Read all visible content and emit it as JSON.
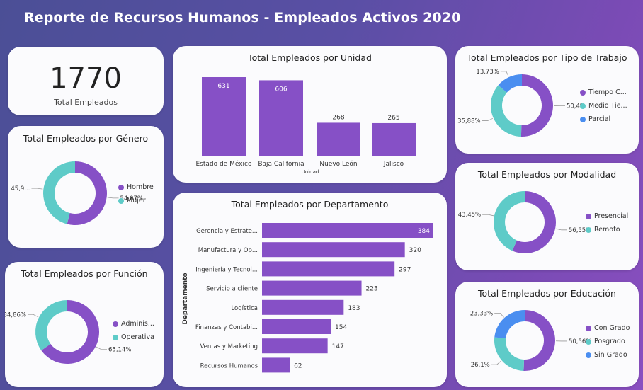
{
  "header": {
    "title": "Reporte de Recursos Humanos - Empleados Activos 2020"
  },
  "kpi": {
    "value": "1770",
    "label": "Total Empleados"
  },
  "colors": {
    "purple": "#8650c6",
    "teal": "#5ecbc8",
    "blue": "#4a8ef0"
  },
  "chart_data": [
    {
      "id": "unidad",
      "type": "bar",
      "title": "Total Empleados por Unidad",
      "xlabel": "Unidad",
      "ylabel": "",
      "categories": [
        "Estado de México",
        "Baja California",
        "Nuevo León",
        "Jalisco"
      ],
      "values": [
        631,
        606,
        268,
        265
      ],
      "data_labels": [
        "631",
        "606",
        "268",
        "265"
      ],
      "ylim": [
        0,
        631
      ]
    },
    {
      "id": "departamento",
      "type": "bar",
      "orientation": "horizontal",
      "title": "Total Empleados por Departamento",
      "ylabel": "Departamento",
      "xlabel": "",
      "categories": [
        "Gerencia y Estrate...",
        "Manufactura y Op...",
        "Ingeniería y Tecnol...",
        "Servicio a cliente",
        "Logística",
        "Finanzas y Contabi...",
        "Ventas y Marketing",
        "Recursos Humanos"
      ],
      "values": [
        384,
        320,
        297,
        223,
        183,
        154,
        147,
        62
      ],
      "data_labels": [
        "384",
        "320",
        "297",
        "223",
        "183",
        "154",
        "147",
        "62"
      ],
      "xlim": [
        0,
        384
      ]
    },
    {
      "id": "genero",
      "type": "pie",
      "donut": true,
      "title": "Total Empleados por Género",
      "categories": [
        "Hombre",
        "Mujer"
      ],
      "values": [
        54.07,
        45.93
      ],
      "labels": [
        "54,07%",
        "45,9..."
      ],
      "colors": [
        "#8650c6",
        "#5ecbc8"
      ]
    },
    {
      "id": "funcion",
      "type": "pie",
      "donut": true,
      "title": "Total Empleados por Función",
      "categories": [
        "Adminis...",
        "Operativa"
      ],
      "values": [
        65.14,
        34.86
      ],
      "labels": [
        "65,14%",
        "34,86%"
      ],
      "colors": [
        "#8650c6",
        "#5ecbc8"
      ]
    },
    {
      "id": "tipo",
      "type": "pie",
      "donut": true,
      "title": "Total Empleados por Tipo de Trabajo",
      "categories": [
        "Tiempo C...",
        "Medio Tie...",
        "Parcial"
      ],
      "values": [
        50.4,
        35.88,
        13.73
      ],
      "labels": [
        "50,4%",
        "35,88%",
        "13,73%"
      ],
      "colors": [
        "#8650c6",
        "#5ecbc8",
        "#4a8ef0"
      ]
    },
    {
      "id": "modalidad",
      "type": "pie",
      "donut": true,
      "title": "Total Empleados por Modalidad",
      "categories": [
        "Presencial",
        "Remoto"
      ],
      "values": [
        56.55,
        43.45
      ],
      "labels": [
        "56,55%",
        "43,45%"
      ],
      "colors": [
        "#8650c6",
        "#5ecbc8"
      ]
    },
    {
      "id": "educacion",
      "type": "pie",
      "donut": true,
      "title": "Total Empleados por Educación",
      "categories": [
        "Con Grado",
        "Posgrado",
        "Sin Grado"
      ],
      "values": [
        50.56,
        26.1,
        23.33
      ],
      "labels": [
        "50,56%",
        "26,1%",
        "23,33%"
      ],
      "colors": [
        "#8650c6",
        "#5ecbc8",
        "#4a8ef0"
      ]
    }
  ]
}
